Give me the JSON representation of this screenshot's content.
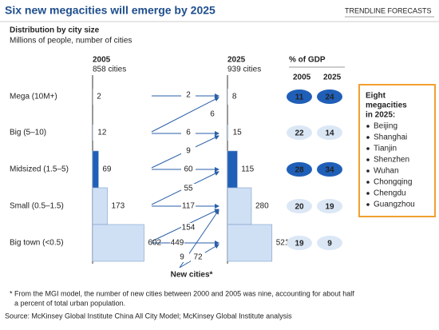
{
  "title": "Six new megacities will emerge by 2025",
  "tag": "TRENDLINE FORECASTS",
  "subtitle": "Distribution by city size",
  "unit_note": "Millions of people, number of cities",
  "columns": [
    {
      "year": "2005",
      "count_label": "858 cities"
    },
    {
      "year": "2025",
      "count_label": "939 cities"
    }
  ],
  "gdp_header": "% of GDP",
  "gdp_years": [
    "2005",
    "2025"
  ],
  "bar_color": "#cfe0f5",
  "highlight_color": "#1f5fb8",
  "rows": [
    {
      "label": "Mega (10M+)",
      "v2005": 2,
      "v2025": 8,
      "gdp2005": 11,
      "gdp2025": 24,
      "highlight": true
    },
    {
      "label": "Big (5–10)",
      "v2005": 12,
      "v2025": 15,
      "gdp2005": 22,
      "gdp2025": 14,
      "highlight": false
    },
    {
      "label": "Midsized (1.5–5)",
      "v2005": 69,
      "v2025": 115,
      "gdp2005": 28,
      "gdp2025": 34,
      "highlight": true
    },
    {
      "label": "Small (0.5–1.5)",
      "v2005": 173,
      "v2025": 280,
      "gdp2005": 20,
      "gdp2025": 19,
      "highlight": false
    },
    {
      "label": "Big town (<0.5)",
      "v2005": 602,
      "v2025": 521,
      "gdp2005": 19,
      "gdp2025": 9,
      "highlight": false
    }
  ],
  "flows": [
    2,
    6,
    6,
    9,
    60,
    55,
    117,
    154,
    449,
    9,
    72
  ],
  "new_cities_label": "New cities*",
  "megacities_box": {
    "title": [
      "Eight",
      "megacities",
      "in 2025:"
    ],
    "cities": [
      "Beijing",
      "Shanghai",
      "Tianjin",
      "Shenzhen",
      "Wuhan",
      "Chongqing",
      "Chengdu",
      "Guangzhou"
    ]
  },
  "footnote": [
    "* From the MGI model, the number of new cities between 2000 and 2005 was nine, accounting for about half",
    "a percent of total urban population."
  ],
  "source": "Source: McKinsey Global Institute China All City Model; McKinsey Global Institute analysis"
}
